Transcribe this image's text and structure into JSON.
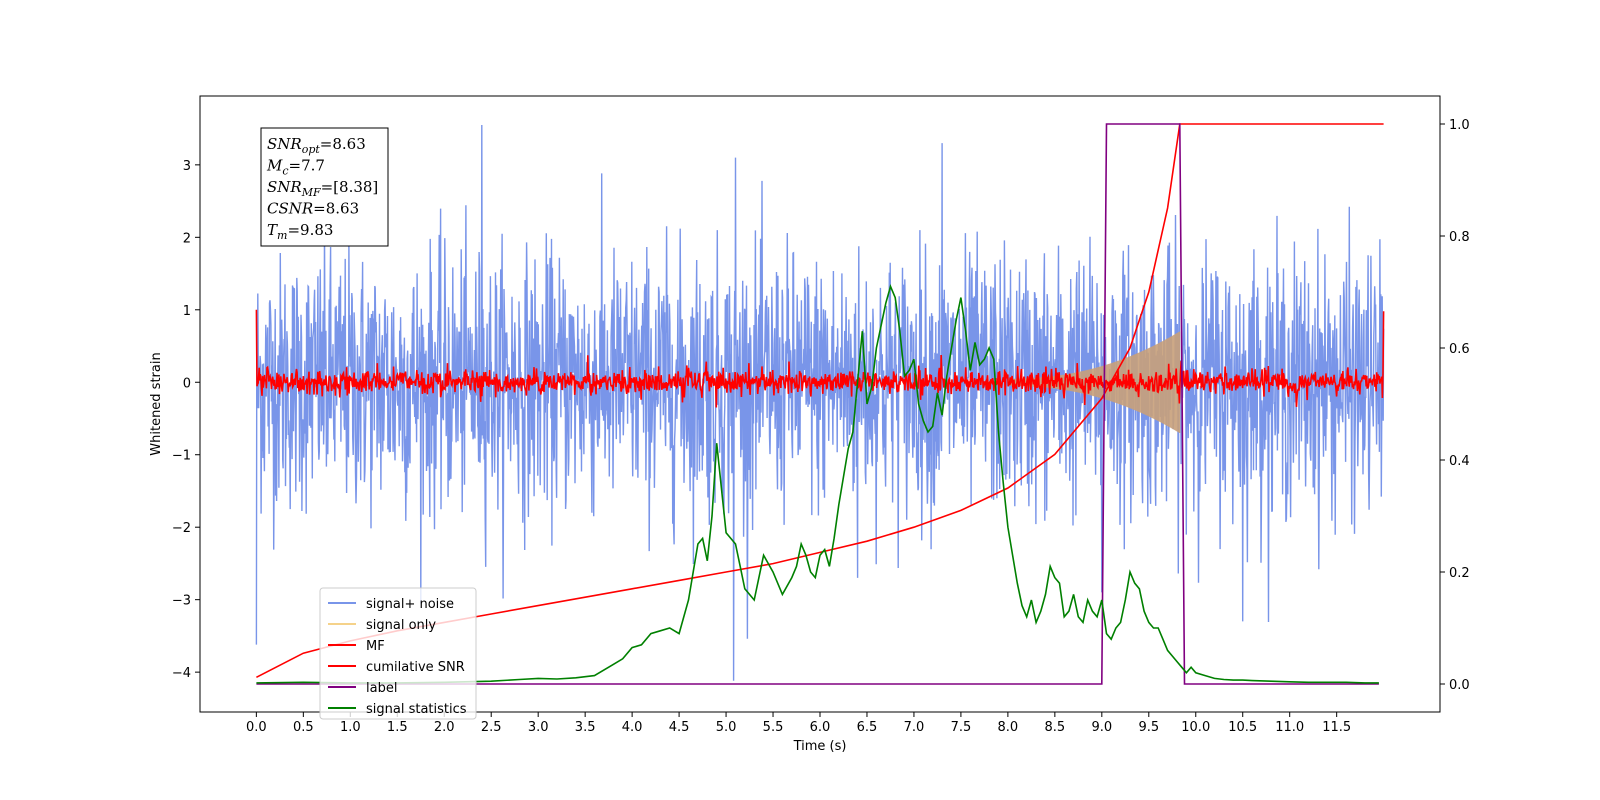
{
  "chart_data": {
    "type": "line",
    "xlabel": "Time (s)",
    "ylabel": "Whitened strain",
    "xlim": [
      -0.6,
      12.6
    ],
    "ylim": [
      -4.55,
      3.95
    ],
    "y2lim": [
      -0.05,
      1.05
    ],
    "x_ticks": [
      0.0,
      0.5,
      1.0,
      1.5,
      2.0,
      2.5,
      3.0,
      3.5,
      4.0,
      4.5,
      5.0,
      5.5,
      6.0,
      6.5,
      7.0,
      7.5,
      8.0,
      8.5,
      9.0,
      9.5,
      10.0,
      10.5,
      11.0,
      11.5
    ],
    "x_tick_labels": [
      "0.0",
      "0.5",
      "1.0",
      "1.5",
      "2.0",
      "2.5",
      "3.0",
      "3.5",
      "4.0",
      "4.5",
      "5.0",
      "5.5",
      "6.0",
      "6.5",
      "7.0",
      "7.5",
      "8.0",
      "8.5",
      "9.0",
      "9.5",
      "10.0",
      "10.5",
      "11.0",
      "11.5"
    ],
    "y_ticks": [
      -4,
      -3,
      -2,
      -1,
      0,
      1,
      2,
      3
    ],
    "y_tick_labels": [
      "−4",
      "−3",
      "−2",
      "−1",
      "0",
      "1",
      "2",
      "3"
    ],
    "y2_ticks": [
      0.0,
      0.2,
      0.4,
      0.6,
      0.8,
      1.0
    ],
    "y2_tick_labels": [
      "0.0",
      "0.2",
      "0.4",
      "0.6",
      "0.8",
      "1.0"
    ],
    "grid": false,
    "legend_position": "bottom-left",
    "annotation": [
      {
        "base": "SNR",
        "sub": "opt",
        "value": "=8.63"
      },
      {
        "base": "M",
        "sub": "c",
        "value": "=7.7"
      },
      {
        "base": "SNR",
        "sub": "MF",
        "value": "=[8.38]"
      },
      {
        "base": "CSNR",
        "sub": "",
        "value": "=8.63"
      },
      {
        "base": "T",
        "sub": "m",
        "value": "=9.83"
      }
    ],
    "series": [
      {
        "name": "signal+ noise",
        "axis": "left",
        "color": "#7995e9",
        "kind": "noise",
        "x_range": [
          0.0,
          12.0
        ],
        "envelope_approx": 1.6,
        "spikes": [
          [
            0.0,
            -3.62
          ],
          [
            2.4,
            3.55
          ],
          [
            5.08,
            -4.12
          ],
          [
            5.1,
            3.1
          ],
          [
            6.4,
            -2.7
          ],
          [
            7.3,
            3.3
          ],
          [
            9.0,
            -2.9
          ],
          [
            10.5,
            -3.3
          ]
        ]
      },
      {
        "name": "signal only",
        "axis": "left",
        "color": "#c8a07a",
        "kind": "chirp",
        "x_range": [
          8.0,
          9.83
        ],
        "amplitude_end": 0.65
      },
      {
        "name": "MF",
        "axis": "left",
        "color": "#ff0000",
        "kind": "noise",
        "x_range": [
          0.0,
          12.0
        ],
        "envelope_approx": 0.2,
        "spikes": [
          [
            0.0,
            1.0
          ],
          [
            0.03,
            0.2
          ],
          [
            12.0,
            0.98
          ]
        ]
      },
      {
        "name": "cumilative SNR",
        "axis": "right",
        "color": "#ff0000",
        "x": [
          0.0,
          0.5,
          1.0,
          1.5,
          2.0,
          2.5,
          3.0,
          3.5,
          4.0,
          4.5,
          5.0,
          5.5,
          6.0,
          6.5,
          7.0,
          7.5,
          8.0,
          8.5,
          9.0,
          9.3,
          9.5,
          9.7,
          9.83,
          12.0
        ],
        "values": [
          0.012,
          0.055,
          0.077,
          0.095,
          0.11,
          0.125,
          0.14,
          0.155,
          0.17,
          0.185,
          0.2,
          0.215,
          0.235,
          0.255,
          0.28,
          0.31,
          0.35,
          0.41,
          0.51,
          0.6,
          0.7,
          0.85,
          1.0,
          1.0
        ]
      },
      {
        "name": "label",
        "axis": "right",
        "color": "#800080",
        "x": [
          0.0,
          9.0,
          9.05,
          9.83,
          9.88,
          11.95
        ],
        "values": [
          0.0,
          0.0,
          1.0,
          1.0,
          0.0,
          0.0
        ]
      },
      {
        "name": "signal statistics",
        "axis": "right",
        "color": "#008000",
        "x": [
          0.0,
          0.5,
          1.0,
          1.5,
          2.0,
          2.5,
          2.8,
          3.0,
          3.2,
          3.4,
          3.6,
          3.8,
          3.9,
          4.0,
          4.1,
          4.2,
          4.3,
          4.4,
          4.5,
          4.6,
          4.7,
          4.75,
          4.8,
          4.85,
          4.9,
          4.95,
          5.0,
          5.05,
          5.1,
          5.15,
          5.2,
          5.3,
          5.4,
          5.5,
          5.6,
          5.7,
          5.75,
          5.8,
          5.85,
          5.9,
          5.95,
          6.0,
          6.05,
          6.1,
          6.15,
          6.2,
          6.25,
          6.3,
          6.35,
          6.4,
          6.45,
          6.5,
          6.55,
          6.6,
          6.65,
          6.7,
          6.75,
          6.8,
          6.85,
          6.9,
          6.95,
          7.0,
          7.05,
          7.1,
          7.15,
          7.2,
          7.25,
          7.3,
          7.35,
          7.4,
          7.45,
          7.5,
          7.55,
          7.6,
          7.65,
          7.7,
          7.75,
          7.8,
          7.85,
          7.9,
          7.95,
          8.0,
          8.05,
          8.1,
          8.15,
          8.2,
          8.25,
          8.3,
          8.35,
          8.4,
          8.45,
          8.5,
          8.55,
          8.6,
          8.65,
          8.7,
          8.75,
          8.8,
          8.85,
          8.9,
          8.95,
          9.0,
          9.05,
          9.1,
          9.15,
          9.2,
          9.25,
          9.3,
          9.35,
          9.4,
          9.45,
          9.5,
          9.55,
          9.6,
          9.65,
          9.7,
          9.75,
          9.8,
          9.85,
          9.9,
          9.95,
          10.0,
          10.1,
          10.2,
          10.3,
          10.4,
          10.5,
          10.6,
          10.8,
          11.0,
          11.2,
          11.4,
          11.6,
          11.8,
          11.95
        ],
        "values": [
          0.002,
          0.003,
          0.002,
          0.002,
          0.003,
          0.005,
          0.008,
          0.01,
          0.009,
          0.011,
          0.015,
          0.035,
          0.045,
          0.065,
          0.07,
          0.09,
          0.095,
          0.1,
          0.09,
          0.15,
          0.25,
          0.26,
          0.22,
          0.3,
          0.43,
          0.35,
          0.27,
          0.26,
          0.25,
          0.21,
          0.17,
          0.15,
          0.23,
          0.2,
          0.16,
          0.19,
          0.21,
          0.25,
          0.23,
          0.2,
          0.19,
          0.23,
          0.24,
          0.21,
          0.26,
          0.32,
          0.37,
          0.42,
          0.45,
          0.54,
          0.63,
          0.5,
          0.53,
          0.6,
          0.64,
          0.68,
          0.71,
          0.69,
          0.63,
          0.55,
          0.56,
          0.58,
          0.5,
          0.47,
          0.45,
          0.46,
          0.52,
          0.48,
          0.55,
          0.6,
          0.65,
          0.69,
          0.63,
          0.56,
          0.61,
          0.57,
          0.58,
          0.6,
          0.58,
          0.45,
          0.36,
          0.28,
          0.23,
          0.18,
          0.14,
          0.12,
          0.15,
          0.11,
          0.13,
          0.16,
          0.21,
          0.19,
          0.18,
          0.12,
          0.13,
          0.16,
          0.12,
          0.11,
          0.15,
          0.13,
          0.12,
          0.15,
          0.09,
          0.08,
          0.1,
          0.11,
          0.15,
          0.2,
          0.18,
          0.17,
          0.13,
          0.11,
          0.1,
          0.1,
          0.08,
          0.06,
          0.05,
          0.04,
          0.03,
          0.02,
          0.03,
          0.02,
          0.015,
          0.01,
          0.008,
          0.007,
          0.007,
          0.006,
          0.005,
          0.004,
          0.003,
          0.003,
          0.003,
          0.002,
          0.002
        ]
      }
    ]
  }
}
